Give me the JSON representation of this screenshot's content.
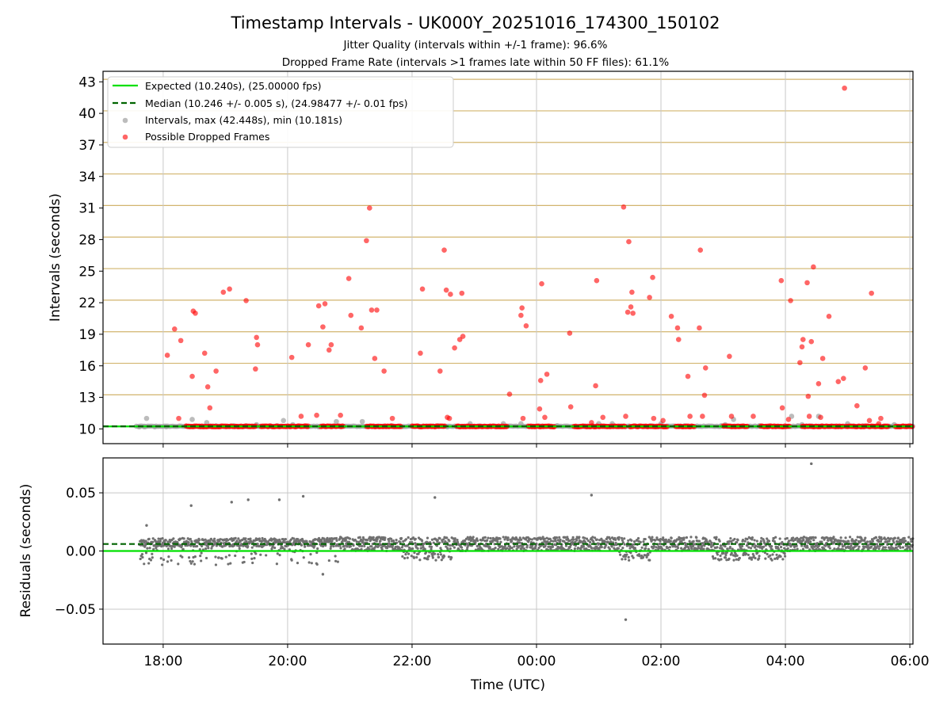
{
  "figure": {
    "title": "Timestamp Intervals - UK000Y_20251016_174300_150102",
    "subtitle1": "Jitter Quality (intervals within +/-1 frame): 96.6%",
    "subtitle2": "Dropped Frame Rate (intervals >1 frames late within 50 FF files): 61.1%"
  },
  "colors": {
    "expected": "#00e000",
    "median": "#006400",
    "intervals": "#a0a0a0",
    "dropped": "#ff0000",
    "residual": "#707070",
    "frame_grid": "#d2b46e",
    "time_grid": "#c8c8c8"
  },
  "chart_data": [
    {
      "type": "scatter",
      "id": "intervals",
      "ylabel": "Intervals (seconds)",
      "xlim": [
        -58,
        723
      ],
      "ylim": [
        8.6,
        44.0
      ],
      "yticks": [
        10,
        13,
        16,
        19,
        22,
        25,
        28,
        31,
        34,
        37,
        40,
        43
      ],
      "frame_grid": [
        10.24,
        13.24,
        16.24,
        19.24,
        22.24,
        25.24,
        28.24,
        31.24,
        34.24,
        37.24,
        40.24,
        43.24
      ],
      "expected_interval": 10.24,
      "median_interval": 10.246,
      "legend": {
        "placement": "top-left",
        "expected": "Expected (10.240s), (25.00000 fps)",
        "median": "Median (10.246 +/- 0.005 s), (24.98477 +/- 0.01 fps)",
        "intervals": "Intervals, max (42.448s), min (10.181s)",
        "dropped": "Possible Dropped Frames"
      },
      "dropped_band_segments": [
        [
          22,
          90
        ],
        [
          94,
          140
        ],
        [
          152,
          174
        ],
        [
          196,
          230
        ],
        [
          240,
          272
        ],
        [
          283,
          332
        ],
        [
          352,
          378
        ],
        [
          396,
          446
        ],
        [
          450,
          486
        ],
        [
          494,
          512
        ],
        [
          540,
          564
        ],
        [
          576,
          604
        ],
        [
          616,
          656
        ],
        [
          658,
          700
        ],
        [
          706,
          723
        ]
      ],
      "grey_points": [
        [
          -23,
          10.2
        ],
        [
          -18,
          10.2
        ],
        [
          -16,
          11.0
        ],
        [
          -8,
          10.2
        ],
        [
          3,
          10.2
        ],
        [
          28,
          10.9
        ],
        [
          35,
          10.2
        ],
        [
          42,
          10.6
        ],
        [
          51,
          10.3
        ],
        [
          68,
          10.3
        ],
        [
          80,
          10.3
        ],
        [
          90,
          10.4
        ],
        [
          110,
          10.3
        ],
        [
          116,
          10.8
        ],
        [
          125,
          10.4
        ],
        [
          150,
          10.2
        ],
        [
          167,
          10.7
        ],
        [
          192,
          10.7
        ],
        [
          220,
          10.3
        ],
        [
          265,
          10.3
        ],
        [
          274,
          10.2
        ],
        [
          296,
          10.5
        ],
        [
          328,
          10.5
        ],
        [
          345,
          10.5
        ],
        [
          380,
          10.3
        ],
        [
          420,
          10.5
        ],
        [
          433,
          10.5
        ],
        [
          470,
          10.3
        ],
        [
          480,
          10.5
        ],
        [
          503,
          10.3
        ],
        [
          538,
          10.3
        ],
        [
          542,
          10.4
        ],
        [
          550,
          10.9
        ],
        [
          575,
          10.3
        ],
        [
          606,
          11.2
        ],
        [
          612,
          10.3
        ],
        [
          616,
          10.4
        ],
        [
          632,
          11.2
        ],
        [
          660,
          10.5
        ],
        [
          705,
          10.4
        ],
        [
          720,
          10.3
        ]
      ],
      "dropped_points": [
        [
          4,
          17.0
        ],
        [
          11,
          19.5
        ],
        [
          15,
          11.0
        ],
        [
          17,
          18.4
        ],
        [
          28,
          15.0
        ],
        [
          29,
          21.2
        ],
        [
          31,
          21.0
        ],
        [
          40,
          17.2
        ],
        [
          43,
          14.0
        ],
        [
          45,
          12.0
        ],
        [
          51,
          15.5
        ],
        [
          58,
          23.0
        ],
        [
          64,
          23.3
        ],
        [
          80,
          22.2
        ],
        [
          89,
          15.7
        ],
        [
          90,
          18.7
        ],
        [
          91,
          18.0
        ],
        [
          124,
          16.8
        ],
        [
          133,
          11.2
        ],
        [
          140,
          18.0
        ],
        [
          148,
          11.3
        ],
        [
          150,
          21.7
        ],
        [
          154,
          19.7
        ],
        [
          156,
          21.9
        ],
        [
          160,
          17.5
        ],
        [
          162,
          18.0
        ],
        [
          171,
          11.3
        ],
        [
          179,
          24.3
        ],
        [
          181,
          20.8
        ],
        [
          191,
          19.6
        ],
        [
          196,
          27.9
        ],
        [
          199,
          31.0
        ],
        [
          201,
          21.3
        ],
        [
          204,
          16.7
        ],
        [
          206,
          21.3
        ],
        [
          213,
          15.5
        ],
        [
          221,
          11.0
        ],
        [
          248,
          17.2
        ],
        [
          250,
          23.3
        ],
        [
          267,
          15.5
        ],
        [
          271,
          27.0
        ],
        [
          273,
          23.2
        ],
        [
          274,
          11.1
        ],
        [
          276,
          11.0
        ],
        [
          277,
          22.8
        ],
        [
          281,
          17.7
        ],
        [
          286,
          18.5
        ],
        [
          288,
          22.9
        ],
        [
          289,
          18.8
        ],
        [
          334,
          13.3
        ],
        [
          345,
          20.8
        ],
        [
          346,
          21.5
        ],
        [
          347,
          11.0
        ],
        [
          350,
          19.8
        ],
        [
          363,
          11.9
        ],
        [
          364,
          14.6
        ],
        [
          365,
          23.8
        ],
        [
          368,
          11.1
        ],
        [
          370,
          15.2
        ],
        [
          392,
          19.1
        ],
        [
          393,
          12.1
        ],
        [
          413,
          10.6
        ],
        [
          417,
          14.1
        ],
        [
          418,
          24.1
        ],
        [
          424,
          11.1
        ],
        [
          444,
          31.1
        ],
        [
          446,
          11.2
        ],
        [
          448,
          21.1
        ],
        [
          449,
          27.8
        ],
        [
          451,
          21.6
        ],
        [
          452,
          23.0
        ],
        [
          453,
          21.0
        ],
        [
          469,
          22.5
        ],
        [
          472,
          24.4
        ],
        [
          473,
          11.0
        ],
        [
          482,
          10.8
        ],
        [
          490,
          20.7
        ],
        [
          496,
          19.6
        ],
        [
          497,
          18.5
        ],
        [
          506,
          15.0
        ],
        [
          508,
          11.2
        ],
        [
          517,
          19.6
        ],
        [
          518,
          27.0
        ],
        [
          520,
          11.2
        ],
        [
          522,
          13.2
        ],
        [
          523,
          15.8
        ],
        [
          546,
          16.9
        ],
        [
          548,
          11.2
        ],
        [
          569,
          11.2
        ],
        [
          596,
          24.1
        ],
        [
          597,
          12.0
        ],
        [
          603,
          10.9
        ],
        [
          605,
          22.2
        ],
        [
          614,
          16.3
        ],
        [
          616,
          17.8
        ],
        [
          617,
          18.5
        ],
        [
          621,
          23.9
        ],
        [
          622,
          13.1
        ],
        [
          623,
          11.2
        ],
        [
          625,
          18.3
        ],
        [
          627,
          25.4
        ],
        [
          632,
          14.3
        ],
        [
          634,
          11.1
        ],
        [
          636,
          16.7
        ],
        [
          642,
          20.7
        ],
        [
          651,
          14.5
        ],
        [
          656,
          14.8
        ],
        [
          657,
          42.4
        ],
        [
          669,
          12.2
        ],
        [
          677,
          15.8
        ],
        [
          681,
          10.8
        ],
        [
          683,
          22.9
        ],
        [
          690,
          10.5
        ],
        [
          692,
          11.0
        ]
      ]
    },
    {
      "type": "scatter",
      "id": "residuals",
      "ylabel": "Residuals (seconds)",
      "xlabel": "Time (UTC)",
      "xlim": [
        -58,
        723
      ],
      "ylim": [
        -0.08,
        0.08
      ],
      "yticks": [
        0.05,
        0.0,
        -0.05
      ],
      "ytick_labels": [
        "0.05",
        "0.00",
        "−0.05"
      ],
      "xticks": [
        0,
        120,
        240,
        360,
        480,
        600,
        720
      ],
      "xtick_labels": [
        "18:00",
        "20:00",
        "22:00",
        "00:00",
        "02:00",
        "04:00",
        "06:00"
      ],
      "expected_residual": 0.0,
      "median_residual": 0.006,
      "outlier_points": [
        [
          -16,
          0.022
        ],
        [
          27,
          0.039
        ],
        [
          66,
          0.042
        ],
        [
          82,
          0.044
        ],
        [
          112,
          0.044
        ],
        [
          135,
          0.047
        ],
        [
          154,
          -0.02
        ],
        [
          262,
          0.046
        ],
        [
          413,
          0.048
        ],
        [
          446,
          -0.059
        ],
        [
          625,
          0.075
        ]
      ]
    }
  ]
}
